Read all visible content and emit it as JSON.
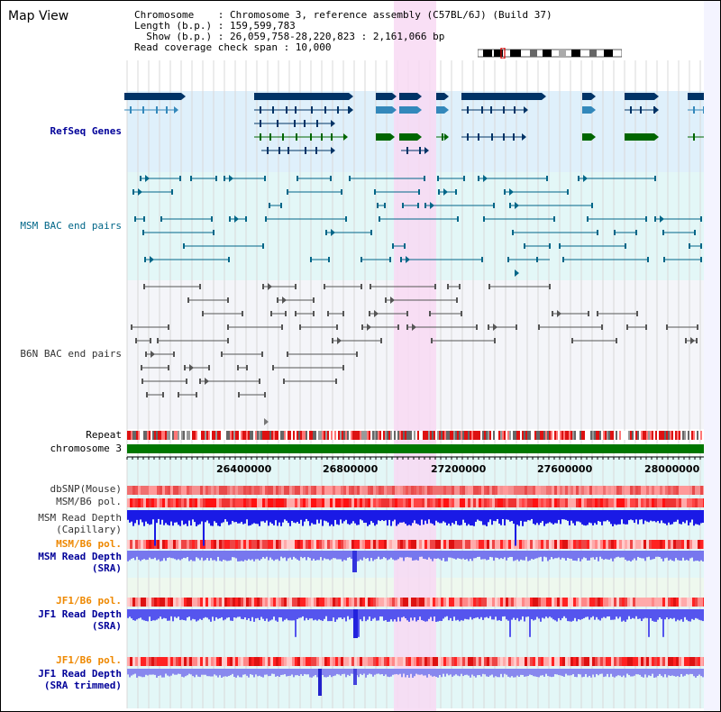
{
  "page": {
    "title": "Map View"
  },
  "header": {
    "line1": "Chromosome    : Chromosome 3, reference assembly (C57BL/6J) (Build 37)",
    "line2": "Length (b.p.) : 159,599,783",
    "line3": "  Show (b.p.) : 26,059,758-28,220,823 : 2,161,066 bp",
    "line4": "Read coverage check span : 10,000"
  },
  "tracks": {
    "refseq": "RefSeq Genes",
    "msm_bac": "MSM BAC end pairs",
    "b6n_bac": "B6N BAC end pairs",
    "repeat": "Repeat",
    "chromosome": "chromosome 3",
    "dbsnp": "dbSNP(Mouse)",
    "msm_b6_pol_1": "MSM/B6 pol.",
    "msm_depth_cap_1": "MSM Read Depth",
    "msm_depth_cap_2": "(Capillary)",
    "msm_b6_pol_2": "MSM/B6 pol.",
    "msm_depth_sra_1": "MSM Read Depth",
    "msm_depth_sra_2": "(SRA)",
    "jf1_b6_pol_1": "JF1/B6 pol.",
    "jf1_depth_sra_1": "JF1 Read Depth",
    "jf1_depth_sra_2": "(SRA)",
    "jf1_b6_pol_2": "JF1/B6 pol.",
    "jf1_depth_trim_1": "JF1 Read Depth",
    "jf1_depth_trim_2": "(SRA trimmed)"
  },
  "axis": {
    "ticks": [
      "26400000",
      "26800000",
      "27200000",
      "27600000",
      "28000000"
    ]
  },
  "colors": {
    "refseq_bg": "#dff0fb",
    "msm_bg": "#e3f7f7",
    "b6n_bg": "#f4f5f9",
    "highlight": "#f8d9f3",
    "gene_dark": "#003366",
    "gene_mid": "#3388bb",
    "gene_green": "#006600",
    "msm_line": "#006688",
    "b6n_line": "#555555",
    "chromosome": "#007700",
    "label_blue": "#000099",
    "label_orange": "#ee8800",
    "label_gray": "#333333"
  }
}
